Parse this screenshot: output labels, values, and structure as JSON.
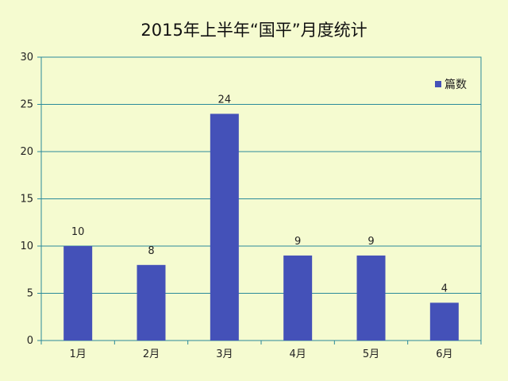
{
  "chart_data": {
    "type": "bar",
    "title": "2015年上半年“国平”月度统计",
    "categories": [
      "1月",
      "2月",
      "3月",
      "4月",
      "5月",
      "6月"
    ],
    "series": [
      {
        "name": "篇数",
        "values": [
          10,
          8,
          24,
          9,
          9,
          4
        ]
      }
    ],
    "xlabel": "",
    "ylabel": "",
    "ylim": [
      0,
      30
    ],
    "yticks": [
      0,
      5,
      10,
      15,
      20,
      25,
      30
    ],
    "grid": true,
    "legend": "top-right",
    "colors": {
      "bar": "#4451b8",
      "gridline": "#2a8a9a",
      "axis": "#2a8a9a",
      "plot_background": "#f5fbd0"
    }
  }
}
